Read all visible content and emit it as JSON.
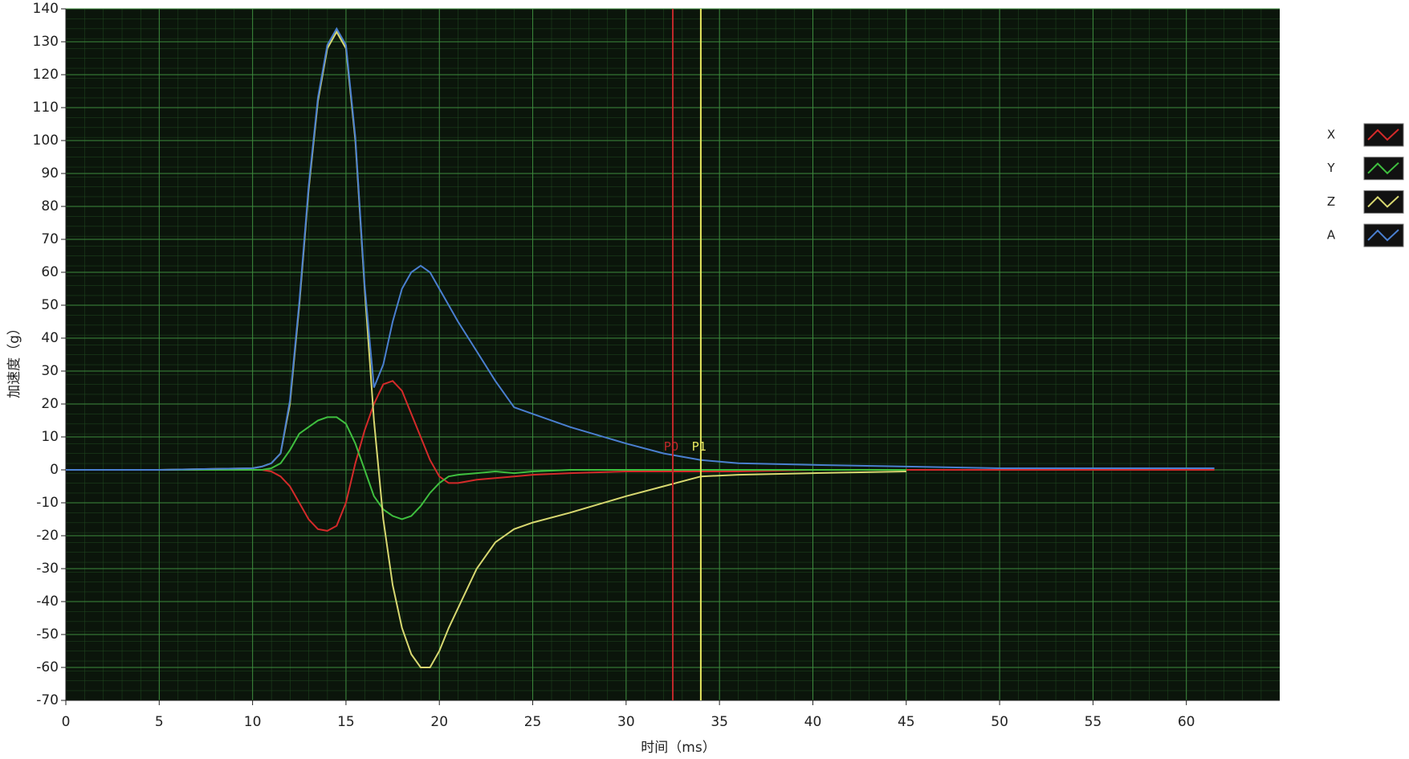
{
  "chart_data": {
    "type": "line",
    "xlabel": "时间（ms）",
    "ylabel": "加速度（g）",
    "x": [
      0,
      5,
      10,
      10.5,
      11,
      11.5,
      12,
      12.5,
      13,
      13.5,
      14,
      14.5,
      15,
      15.5,
      16,
      16.5,
      17,
      17.5,
      18,
      18.5,
      19,
      19.5,
      20,
      20.5,
      21,
      22,
      23,
      24,
      25,
      27,
      30,
      32,
      34,
      36,
      40,
      45,
      50,
      55,
      61.5
    ],
    "series": [
      {
        "name": "X",
        "color": "#d42a2a",
        "values": [
          0,
          0,
          0,
          0,
          -0.5,
          -2,
          -5,
          -10,
          -15,
          -18,
          -18.5,
          -17,
          -10,
          2,
          12,
          20,
          26,
          27,
          24,
          17,
          10,
          3,
          -2,
          -4,
          -4,
          -3,
          -2.5,
          -2,
          -1.5,
          -1,
          -0.5,
          -0.5,
          -0.5,
          -0.5,
          0,
          0,
          0,
          0,
          0
        ]
      },
      {
        "name": "Y",
        "color": "#3fbf3f",
        "values": [
          0,
          0,
          0,
          0,
          0.5,
          2,
          6,
          11,
          13,
          15,
          16,
          16,
          14,
          8,
          0,
          -8,
          -12,
          -14,
          -15,
          -14,
          -11,
          -7,
          -4,
          -2,
          -1.5,
          -1,
          -0.5,
          -1,
          -0.5,
          0,
          0,
          0,
          0,
          0,
          0,
          0,
          null,
          null,
          null
        ]
      },
      {
        "name": "Z",
        "color": "#d8d870",
        "values": [
          0,
          0,
          0.5,
          1,
          2,
          5,
          20,
          50,
          85,
          112,
          128,
          133,
          128,
          100,
          55,
          15,
          -15,
          -35,
          -48,
          -56,
          -60,
          -60,
          -55,
          -48,
          -42,
          -30,
          -22,
          -18,
          -16,
          -13,
          -8,
          -5,
          -2,
          -1.5,
          -1,
          -0.5,
          null,
          null,
          null
        ]
      },
      {
        "name": "A",
        "color": "#4a7fd0",
        "values": [
          0,
          0,
          0.5,
          1,
          2,
          5,
          21,
          51,
          86,
          113,
          129,
          134,
          129,
          101,
          56,
          25,
          32,
          45,
          55,
          60,
          62,
          60,
          55,
          50,
          45,
          36,
          27,
          19,
          17,
          13,
          8,
          5,
          3,
          2,
          1.5,
          1,
          0.5,
          0.5,
          0.5
        ]
      }
    ],
    "cursors": [
      {
        "x": 32.5,
        "label": "P0",
        "color": "#c0282a"
      },
      {
        "x": 34,
        "label": "P1",
        "color": "#e8e860"
      }
    ],
    "xlim": [
      0,
      65
    ],
    "xticks": [
      0,
      5,
      10,
      15,
      20,
      25,
      30,
      35,
      40,
      45,
      50,
      55,
      60
    ],
    "ylim": [
      -70,
      140
    ],
    "yticks": [
      -70,
      -60,
      -50,
      -40,
      -30,
      -20,
      -10,
      0,
      10,
      20,
      30,
      40,
      50,
      60,
      70,
      80,
      90,
      100,
      110,
      120,
      130,
      140
    ],
    "grid": true
  }
}
